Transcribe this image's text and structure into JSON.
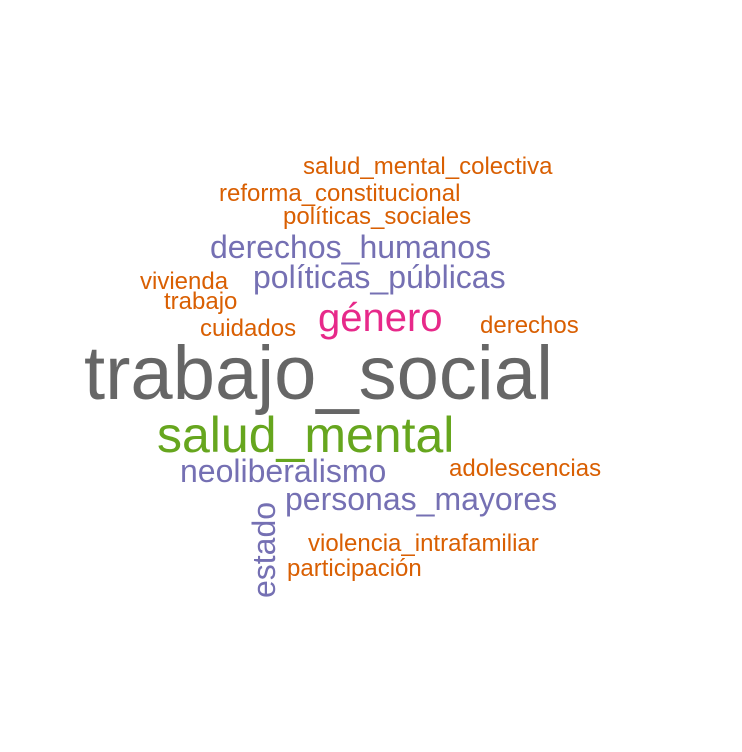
{
  "colors": {
    "gray": "#666666",
    "green": "#66a61e",
    "magenta": "#e7298a",
    "purple": "#7570b3",
    "orange": "#d95f02"
  },
  "words": [
    {
      "text": "salud_mental_colectiva",
      "color": "#d95f02"
    },
    {
      "text": "reforma_constitucional",
      "color": "#d95f02"
    },
    {
      "text": "políticas_sociales",
      "color": "#d95f02"
    },
    {
      "text": "derechos_humanos",
      "color": "#7570b3"
    },
    {
      "text": "vivienda",
      "color": "#d95f02"
    },
    {
      "text": "políticas_públicas",
      "color": "#7570b3"
    },
    {
      "text": "trabajo",
      "color": "#d95f02"
    },
    {
      "text": "cuidados",
      "color": "#d95f02"
    },
    {
      "text": "género",
      "color": "#e7298a"
    },
    {
      "text": "derechos",
      "color": "#d95f02"
    },
    {
      "text": "trabajo_social",
      "color": "#666666"
    },
    {
      "text": "salud_mental",
      "color": "#66a61e"
    },
    {
      "text": "neoliberalismo",
      "color": "#7570b3"
    },
    {
      "text": "adolescencias",
      "color": "#d95f02"
    },
    {
      "text": "personas_mayores",
      "color": "#7570b3"
    },
    {
      "text": "estado",
      "color": "#7570b3"
    },
    {
      "text": "violencia_intrafamiliar",
      "color": "#d95f02"
    },
    {
      "text": "participación",
      "color": "#d95f02"
    }
  ]
}
